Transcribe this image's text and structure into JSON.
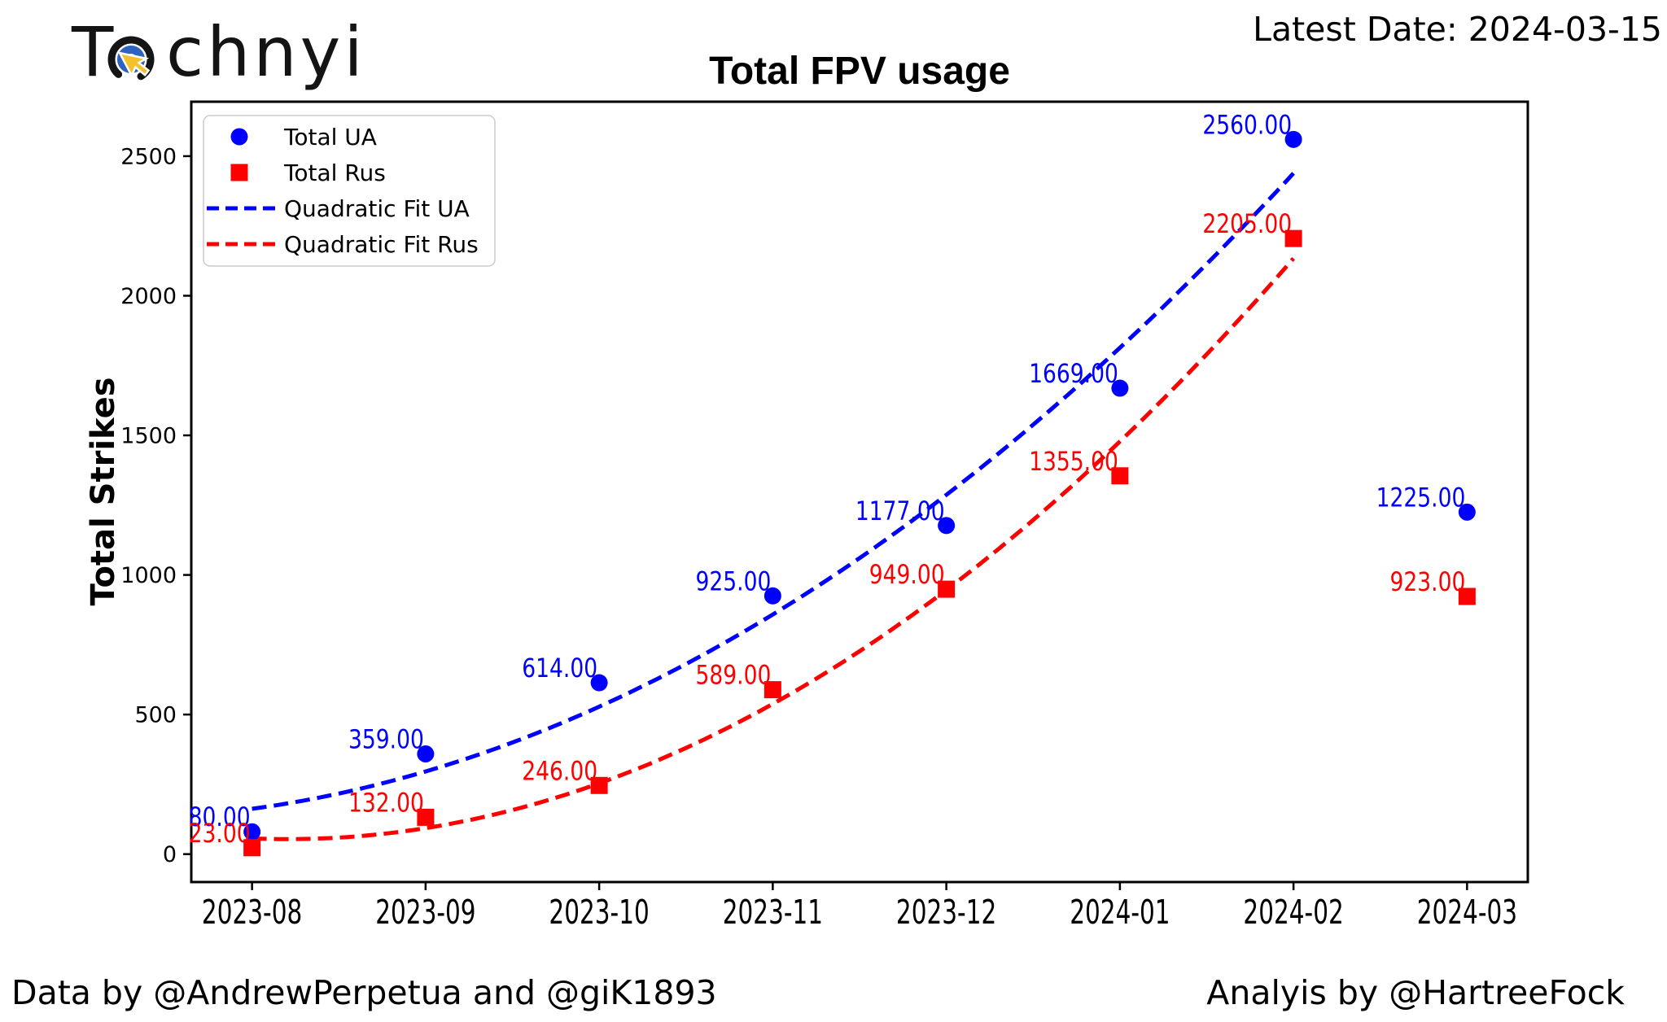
{
  "header": {
    "logo": {
      "text": "Technyi",
      "start": "T",
      "end": "chnyi",
      "icon": "target-cursor-icon",
      "colors": {
        "ring": "#151515",
        "inner_ring": "#2e64bf",
        "cursor": "#f2c12c"
      }
    },
    "latest_date": "Latest Date: 2024-03-15"
  },
  "chart_data": {
    "type": "scatter",
    "title": "Total FPV usage",
    "ylabel": "Total Strikes",
    "xlabel": "",
    "categories": [
      "2023-08",
      "2023-09",
      "2023-10",
      "2023-11",
      "2023-12",
      "2024-01",
      "2024-02",
      "2024-03"
    ],
    "series": [
      {
        "name": "Total UA",
        "marker": "circle",
        "color": "#0000ff",
        "values": [
          80,
          359,
          614,
          925,
          1177,
          1669,
          2560,
          1225
        ]
      },
      {
        "name": "Total Rus",
        "marker": "square",
        "color": "#ff0000",
        "values": [
          23,
          132,
          246,
          589,
          949,
          1355,
          2205,
          923
        ]
      }
    ],
    "fits": [
      {
        "name": "Quadratic Fit UA",
        "color": "#0000ff",
        "source_series": "Total UA",
        "type": "quadratic",
        "fit_range": [
          "2023-08",
          "2024-02"
        ]
      },
      {
        "name": "Quadratic Fit Rus",
        "color": "#ff0000",
        "source_series": "Total Rus",
        "type": "quadratic",
        "fit_range": [
          "2023-08",
          "2024-02"
        ]
      }
    ],
    "legend": [
      {
        "label": "Total UA",
        "glyph": "circle",
        "color": "#0000ff"
      },
      {
        "label": "Total Rus",
        "glyph": "square",
        "color": "#ff0000"
      },
      {
        "label": "Quadratic Fit UA",
        "glyph": "dashed-line",
        "color": "#0000ff"
      },
      {
        "label": "Quadratic Fit Rus",
        "glyph": "dashed-line",
        "color": "#ff0000"
      }
    ],
    "legend_position": "upper left",
    "point_label_format": ".2f",
    "yticks": [
      0,
      500,
      1000,
      1500,
      2000,
      2500
    ],
    "ylim": [
      -100,
      2695
    ],
    "xlim_months": [
      -0.35,
      7.35
    ],
    "grid": false
  },
  "footer": {
    "credit_left": "Data by @AndrewPerpetua and @giK1893",
    "credit_right": "Analyis by @HartreeFock"
  }
}
